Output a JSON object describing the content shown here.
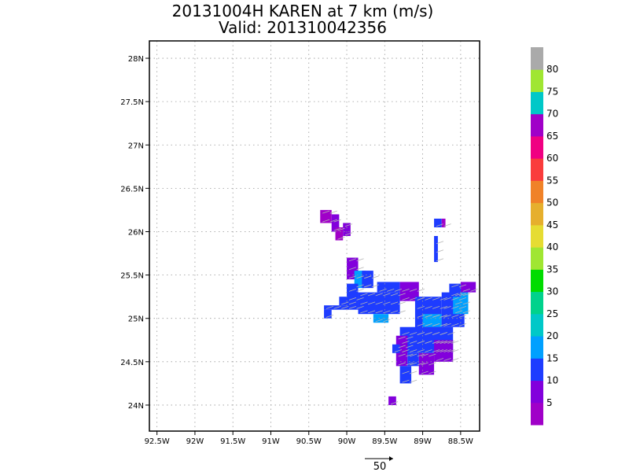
{
  "header": {
    "title": "20131004H KAREN at 7 km (m/s)",
    "subtitle": "Valid: 201310042356"
  },
  "reference_vector": {
    "label": "50"
  },
  "chart_data": {
    "type": "heatmap",
    "title": "20131004H KAREN at 7 km (m/s)",
    "subtitle": "Valid: 201310042356",
    "xlim": [
      -92.6,
      -88.25
    ],
    "ylim": [
      23.7,
      28.2
    ],
    "grid": true,
    "x_ticks": [
      {
        "value": -92.5,
        "label": "92.5W"
      },
      {
        "value": -92.0,
        "label": "92W"
      },
      {
        "value": -91.5,
        "label": "91.5W"
      },
      {
        "value": -91.0,
        "label": "91W"
      },
      {
        "value": -90.5,
        "label": "90.5W"
      },
      {
        "value": -90.0,
        "label": "90W"
      },
      {
        "value": -89.5,
        "label": "89.5W"
      },
      {
        "value": -89.0,
        "label": "89W"
      },
      {
        "value": -88.5,
        "label": "88.5W"
      }
    ],
    "y_ticks": [
      {
        "value": 24.0,
        "label": "24N"
      },
      {
        "value": 24.5,
        "label": "24.5N"
      },
      {
        "value": 25.0,
        "label": "25N"
      },
      {
        "value": 25.5,
        "label": "25.5N"
      },
      {
        "value": 26.0,
        "label": "26N"
      },
      {
        "value": 26.5,
        "label": "26.5N"
      },
      {
        "value": 27.0,
        "label": "27N"
      },
      {
        "value": 27.5,
        "label": "27.5N"
      },
      {
        "value": 28.0,
        "label": "28N"
      }
    ],
    "colorbar": {
      "colors": [
        "#a000c8",
        "#8200dc",
        "#1e3cff",
        "#00a0ff",
        "#00c8c8",
        "#00d28c",
        "#00dc00",
        "#a0e632",
        "#e6dc32",
        "#e6af2d",
        "#f08228",
        "#fa3c3c",
        "#f00082",
        "#a000c8",
        "#00c8c8",
        "#a0e632",
        "#aaaaaa"
      ],
      "labels": [
        "5",
        "10",
        "15",
        "20",
        "25",
        "30",
        "35",
        "40",
        "45",
        "50",
        "55",
        "60",
        "65",
        "70",
        "75",
        "80"
      ]
    },
    "grid_resolution_deg": 0.05,
    "cells": [
      {
        "x0": -90.35,
        "x1": -90.2,
        "y0": 26.1,
        "y1": 26.25,
        "color": "#a000c8"
      },
      {
        "x0": -90.2,
        "x1": -90.1,
        "y0": 26.0,
        "y1": 26.2,
        "color": "#8200dc"
      },
      {
        "x0": -90.15,
        "x1": -90.05,
        "y0": 25.9,
        "y1": 26.05,
        "color": "#a000c8"
      },
      {
        "x0": -90.05,
        "x1": -89.95,
        "y0": 25.95,
        "y1": 26.1,
        "color": "#8200dc"
      },
      {
        "x0": -88.85,
        "x1": -88.75,
        "y0": 26.05,
        "y1": 26.15,
        "color": "#1e3cff"
      },
      {
        "x0": -88.75,
        "x1": -88.7,
        "y0": 26.05,
        "y1": 26.15,
        "color": "#a000c8"
      },
      {
        "x0": -88.85,
        "x1": -88.8,
        "y0": 25.65,
        "y1": 25.95,
        "color": "#1e3cff"
      },
      {
        "x0": -90.0,
        "x1": -89.85,
        "y0": 25.45,
        "y1": 25.7,
        "color": "#8200dc"
      },
      {
        "x0": -89.9,
        "x1": -89.75,
        "y0": 25.35,
        "y1": 25.55,
        "color": "#00a0ff"
      },
      {
        "x0": -89.8,
        "x1": -89.65,
        "y0": 25.35,
        "y1": 25.55,
        "color": "#1e3cff"
      },
      {
        "x0": -90.0,
        "x1": -89.85,
        "y0": 25.1,
        "y1": 25.4,
        "color": "#1e3cff"
      },
      {
        "x0": -89.85,
        "x1": -89.3,
        "y0": 25.05,
        "y1": 25.3,
        "color": "#1e3cff"
      },
      {
        "x0": -89.6,
        "x1": -89.3,
        "y0": 25.3,
        "y1": 25.42,
        "color": "#1e3cff"
      },
      {
        "x0": -89.3,
        "x1": -89.05,
        "y0": 25.2,
        "y1": 25.42,
        "color": "#8200dc"
      },
      {
        "x0": -90.3,
        "x1": -90.0,
        "y0": 25.1,
        "y1": 25.15,
        "color": "#1e3cff"
      },
      {
        "x0": -90.3,
        "x1": -90.2,
        "y0": 25.0,
        "y1": 25.1,
        "color": "#1e3cff"
      },
      {
        "x0": -90.1,
        "x1": -89.95,
        "y0": 25.15,
        "y1": 25.25,
        "color": "#1e3cff"
      },
      {
        "x0": -89.65,
        "x1": -89.45,
        "y0": 24.95,
        "y1": 25.05,
        "color": "#00a0ff"
      },
      {
        "x0": -89.1,
        "x1": -88.75,
        "y0": 24.7,
        "y1": 25.25,
        "color": "#1e3cff"
      },
      {
        "x0": -89.0,
        "x1": -88.75,
        "y0": 24.9,
        "y1": 25.05,
        "color": "#00a0ff"
      },
      {
        "x0": -88.75,
        "x1": -88.45,
        "y0": 24.9,
        "y1": 25.3,
        "color": "#1e3cff"
      },
      {
        "x0": -88.6,
        "x1": -88.4,
        "y0": 25.05,
        "y1": 25.35,
        "color": "#00a0ff"
      },
      {
        "x0": -88.5,
        "x1": -88.3,
        "y0": 25.3,
        "y1": 25.42,
        "color": "#8200dc"
      },
      {
        "x0": -88.65,
        "x1": -88.5,
        "y0": 25.25,
        "y1": 25.4,
        "color": "#1e3cff"
      },
      {
        "x0": -89.3,
        "x1": -88.6,
        "y0": 24.6,
        "y1": 24.9,
        "color": "#1e3cff"
      },
      {
        "x0": -89.35,
        "x1": -89.2,
        "y0": 24.45,
        "y1": 24.8,
        "color": "#8200dc"
      },
      {
        "x0": -89.2,
        "x1": -89.05,
        "y0": 24.45,
        "y1": 24.6,
        "color": "#1e3cff"
      },
      {
        "x0": -89.05,
        "x1": -88.85,
        "y0": 24.35,
        "y1": 24.6,
        "color": "#8200dc"
      },
      {
        "x0": -88.85,
        "x1": -88.6,
        "y0": 24.5,
        "y1": 24.75,
        "color": "#8200dc"
      },
      {
        "x0": -89.4,
        "x1": -89.3,
        "y0": 24.6,
        "y1": 24.7,
        "color": "#1e3cff"
      },
      {
        "x0": -89.3,
        "x1": -89.15,
        "y0": 24.25,
        "y1": 24.45,
        "color": "#1e3cff"
      },
      {
        "x0": -89.45,
        "x1": -89.35,
        "y0": 24.0,
        "y1": 24.1,
        "color": "#8200dc"
      }
    ]
  }
}
